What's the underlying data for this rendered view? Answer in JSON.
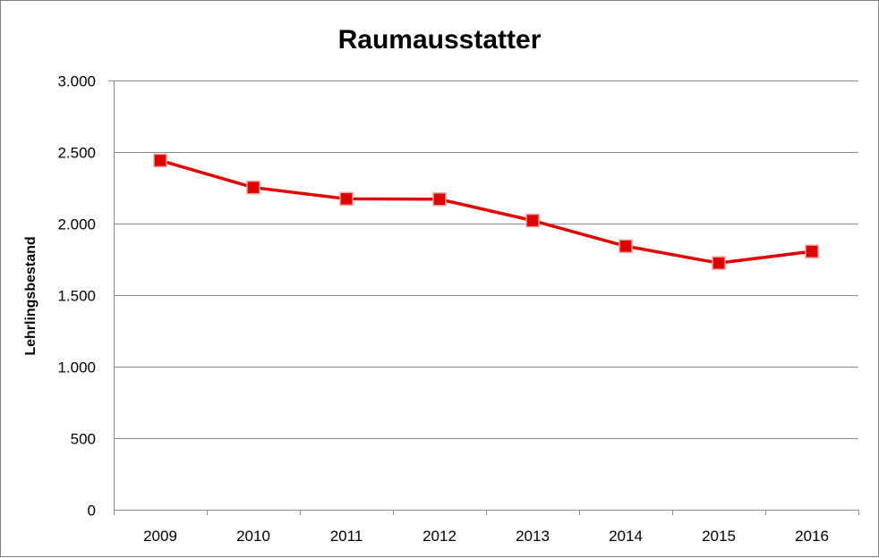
{
  "chart_data": {
    "type": "line",
    "title": "Raumausstatter",
    "xlabel": "",
    "ylabel": "Lehrlingsbestand",
    "categories": [
      "2009",
      "2010",
      "2011",
      "2012",
      "2013",
      "2014",
      "2015",
      "2016"
    ],
    "series": [
      {
        "values": [
          2441,
          2252,
          2173,
          2170,
          2021,
          1842,
          1724,
          1805
        ]
      }
    ],
    "ylim": [
      0,
      3000
    ],
    "yticks": [
      0,
      500,
      1000,
      1500,
      2000,
      2500,
      3000
    ],
    "ytick_labels": [
      "0",
      "500",
      "1.000",
      "1.500",
      "2.000",
      "2.500",
      "3.000"
    ],
    "grid": true,
    "legend": "none",
    "colors": {
      "line": "#e00000",
      "marker_fill": "#e00000",
      "marker_edge": "#f0a0a0",
      "grid": "#8c8c8c"
    }
  }
}
